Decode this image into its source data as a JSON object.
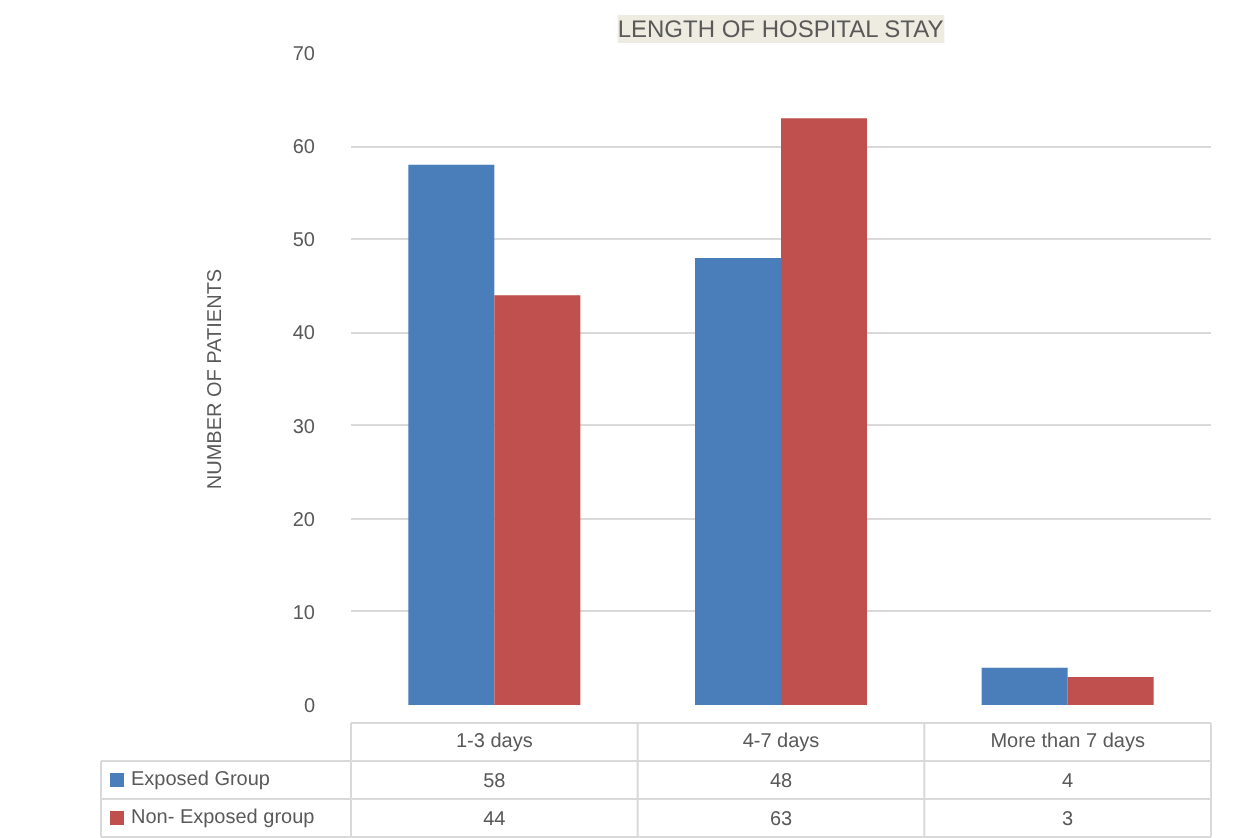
{
  "chart_data": {
    "type": "bar",
    "title": "LENGTH OF HOSPITAL STAY",
    "ylabel": "NUMBER OF PATIENTS",
    "categories": [
      "1-3 days",
      "4-7 days",
      "More than 7 days"
    ],
    "series": [
      {
        "name": "Exposed Group",
        "color": "#4a7ebb",
        "values": [
          58,
          48,
          4
        ]
      },
      {
        "name": "Non- Exposed group",
        "color": "#c0504d",
        "values": [
          44,
          63,
          3
        ]
      }
    ],
    "ylim": [
      0,
      70
    ],
    "yticks": [
      0,
      10,
      20,
      30,
      40,
      50,
      60,
      70
    ],
    "grid": "y",
    "legend": "bottom",
    "data_labels": true
  }
}
